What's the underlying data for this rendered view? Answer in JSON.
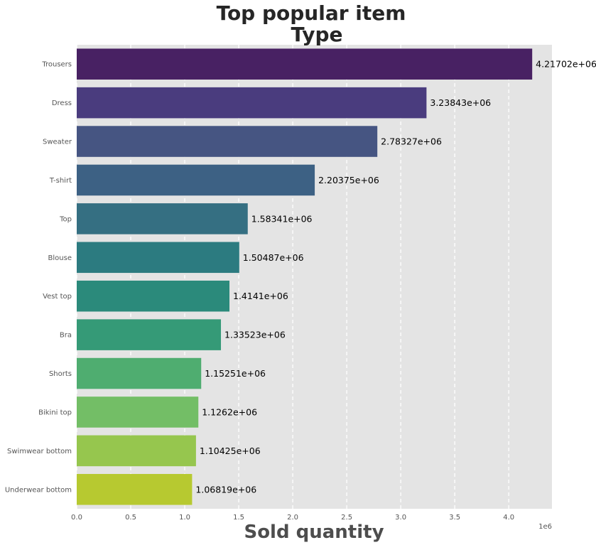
{
  "chart_data": {
    "type": "bar",
    "orientation": "horizontal",
    "title": [
      "Top popular item",
      "Type"
    ],
    "xlabel": "Sold quantity",
    "ylabel": "",
    "x_offset_label": "1e6",
    "xlim": [
      0,
      4.4
    ],
    "xticks": [
      0.0,
      0.5,
      1.0,
      1.5,
      2.0,
      2.5,
      3.0,
      3.5,
      4.0
    ],
    "xtick_labels": [
      "0.0",
      "0.5",
      "1.0",
      "1.5",
      "2.0",
      "2.5",
      "3.0",
      "3.5",
      "4.0"
    ],
    "grid": "vertical dashed",
    "categories": [
      "Trousers",
      "Dress",
      "Sweater",
      "T-shirt",
      "Top",
      "Blouse",
      "Vest top",
      "Bra",
      "Shorts",
      "Bikini top",
      "Swimwear bottom",
      "Underwear bottom"
    ],
    "values": [
      4217020,
      3238430,
      2783270,
      2203750,
      1583410,
      1504870,
      1414100,
      1335230,
      1152510,
      1126200,
      1104250,
      1068190
    ],
    "value_labels": [
      "4.21702e+06",
      "3.23843e+06",
      "2.78327e+06",
      "2.20375e+06",
      "1.58341e+06",
      "1.50487e+06",
      "1.4141e+06",
      "1.33523e+06",
      "1.15251e+06",
      "1.1262e+06",
      "1.10425e+06",
      "1.06819e+06"
    ],
    "colors": [
      "#482163",
      "#4a3c7e",
      "#465582",
      "#3d6184",
      "#356f82",
      "#2c7b80",
      "#2b8a7b",
      "#359a77",
      "#4fad70",
      "#73be66",
      "#96c64e",
      "#b7c930"
    ],
    "background": "#e4e4e4"
  }
}
